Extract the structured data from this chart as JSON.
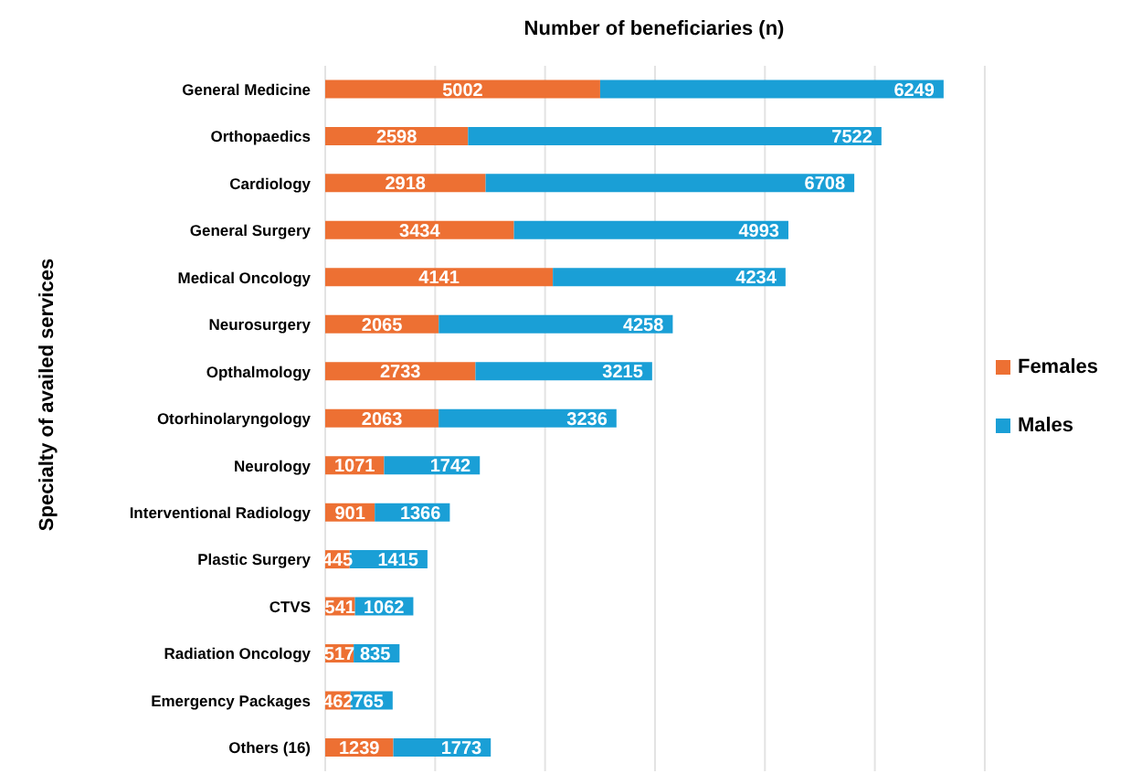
{
  "chart_data": {
    "type": "bar",
    "orientation": "horizontal",
    "stacked": true,
    "title": "Number of beneficiaries (n)",
    "ylabel": "Specialty of availed services",
    "categories": [
      "General Medicine",
      "Orthopaedics",
      "Cardiology",
      "General Surgery",
      "Medical Oncology",
      "Neurosurgery",
      "Opthalmology",
      "Otorhinolaryngology",
      "Neurology",
      "Interventional Radiology",
      "Plastic Surgery",
      "CTVS",
      "Radiation Oncology",
      "Emergency Packages",
      "Others (16)"
    ],
    "series": [
      {
        "name": "Females",
        "color": "#ed7033",
        "values": [
          5002,
          2598,
          2918,
          3434,
          4141,
          2065,
          2733,
          2063,
          1071,
          901,
          445,
          541,
          517,
          462,
          1239
        ]
      },
      {
        "name": "Males",
        "color": "#1a9fd6",
        "values": [
          6249,
          7522,
          6708,
          4993,
          4234,
          4258,
          3215,
          3236,
          1742,
          1366,
          1415,
          1062,
          835,
          765,
          1773
        ]
      }
    ],
    "xlim": [
      0,
      12000
    ],
    "xticks": [
      0,
      2000,
      4000,
      6000,
      8000,
      10000,
      12000
    ],
    "tick_labels": "y",
    "grid": "x",
    "legend": "right",
    "data_labels": true
  }
}
